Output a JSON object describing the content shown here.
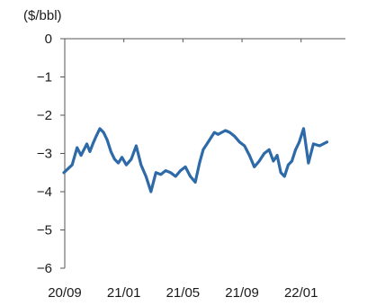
{
  "chart_data": {
    "type": "line",
    "title": "",
    "ylabel": "($/bbl)",
    "xlabel": "",
    "ylim": [
      -6,
      0
    ],
    "yticks": [
      0,
      -1,
      -2,
      -3,
      -4,
      -5,
      -6
    ],
    "ytick_labels": [
      "0",
      "−1",
      "−2",
      "−3",
      "−4",
      "−5",
      "−6"
    ],
    "xticks": [
      "20/09",
      "21/01",
      "21/05",
      "21/09",
      "22/01"
    ],
    "xtick_labels": [
      "20/09",
      "21/01",
      "21/05",
      "21/09",
      "22/01"
    ],
    "xlim": [
      "20/09",
      "22/03"
    ],
    "grid": false,
    "series_color": "#2e6aa8",
    "axis_color": "#555555",
    "series": [
      {
        "x": [
          "20/09",
          "20/09",
          "20/09",
          "20/10",
          "20/10",
          "20/10",
          "20/10",
          "20/10",
          "20/11",
          "20/11",
          "20/11",
          "20/11",
          "20/12",
          "20/12",
          "20/12",
          "20/12",
          "21/01",
          "21/01",
          "21/01",
          "21/02",
          "21/02",
          "21/02",
          "21/03",
          "21/03",
          "21/03",
          "21/04",
          "21/04",
          "21/04",
          "21/05",
          "21/05",
          "21/05",
          "21/06",
          "21/06",
          "21/06",
          "21/06",
          "21/07",
          "21/07",
          "21/07",
          "21/07",
          "21/08",
          "21/08",
          "21/08",
          "21/09",
          "21/09",
          "21/09",
          "21/10",
          "21/10",
          "21/10",
          "21/11",
          "21/11",
          "21/11",
          "21/11",
          "21/12",
          "21/12",
          "21/12",
          "21/12",
          "22/01",
          "22/01",
          "22/01",
          "22/02",
          "22/02"
        ],
        "values": [
          -3.5,
          -3.3,
          -2.85,
          -3.05,
          -2.9,
          -2.75,
          -2.95,
          -2.75,
          -2.55,
          -2.35,
          -2.45,
          -2.65,
          -2.95,
          -3.15,
          -3.25,
          -3.1,
          -3.3,
          -3.15,
          -2.8,
          -3.3,
          -3.6,
          -4.0,
          -3.5,
          -3.55,
          -3.45,
          -3.5,
          -3.6,
          -3.45,
          -3.35,
          -3.6,
          -3.75,
          -3.25,
          -2.9,
          -2.75,
          -2.6,
          -2.45,
          -2.5,
          -2.45,
          -2.4,
          -2.45,
          -2.55,
          -2.7,
          -2.8,
          -3.05,
          -3.35,
          -3.2,
          -3.0,
          -2.9,
          -3.2,
          -3.05,
          -3.5,
          -3.6,
          -3.3,
          -3.2,
          -2.9,
          -2.7,
          -2.35,
          -3.25,
          -2.75,
          -2.8,
          -2.7
        ]
      }
    ]
  }
}
